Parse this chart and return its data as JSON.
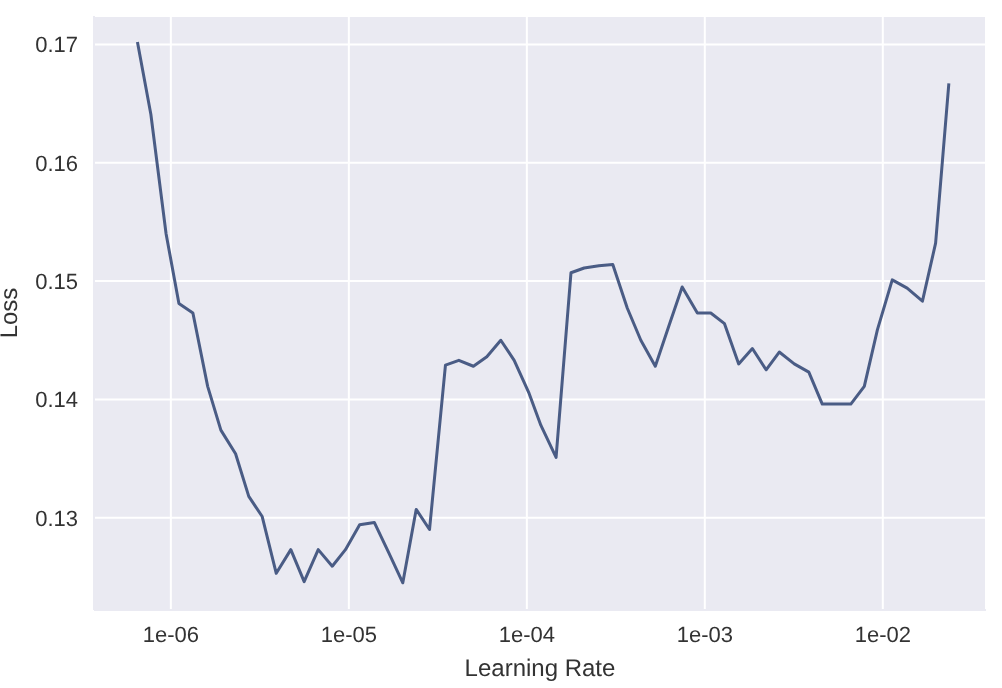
{
  "chart_data": {
    "type": "line",
    "xlabel": "Learning Rate",
    "ylabel": "Loss",
    "log": "x",
    "grid": true,
    "marker": "none",
    "line_style": "solid",
    "xlim": [
      3.7e-07,
      0.038
    ],
    "ylim": [
      0.1222,
      0.1724
    ],
    "xticks": [
      {
        "value": 1e-06,
        "label": "1e-06"
      },
      {
        "value": 1e-05,
        "label": "1e-05"
      },
      {
        "value": 0.0001,
        "label": "1e-04"
      },
      {
        "value": 0.001,
        "label": "1e-03"
      },
      {
        "value": 0.01,
        "label": "1e-02"
      }
    ],
    "yticks": [
      0.13,
      0.14,
      0.15,
      0.16,
      0.17
    ],
    "series": [
      {
        "color": "#4a5c85",
        "x": [
          6.49e-07,
          7.72e-07,
          9.4e-07,
          1.11e-06,
          1.33e-06,
          1.61e-06,
          1.91e-06,
          2.31e-06,
          2.74e-06,
          3.26e-06,
          3.91e-06,
          4.72e-06,
          5.61e-06,
          6.73e-06,
          8.07e-06,
          9.57e-06,
          1.15e-05,
          1.39e-05,
          1.68e-05,
          2.01e-05,
          2.39e-05,
          2.84e-05,
          3.49e-05,
          4.15e-05,
          5.01e-05,
          5.96e-05,
          7.14e-05,
          8.49e-05,
          0.000103,
          0.00012,
          0.000146,
          0.000177,
          0.00021,
          0.000254,
          0.000304,
          0.000367,
          0.000437,
          0.000527,
          0.000628,
          0.000746,
          0.000908,
          0.00108,
          0.00129,
          0.00155,
          0.00185,
          0.00221,
          0.00262,
          0.00318,
          0.00384,
          0.00457,
          0.00552,
          0.00661,
          0.00787,
          0.00933,
          0.0113,
          0.0137,
          0.0167,
          0.0198,
          0.0235
        ],
        "values": [
          0.1702,
          0.1641,
          0.154,
          0.1481,
          0.1473,
          0.1411,
          0.1374,
          0.1354,
          0.1318,
          0.1301,
          0.1253,
          0.1273,
          0.1246,
          0.1273,
          0.1259,
          0.1273,
          0.1294,
          0.1296,
          0.127,
          0.1245,
          0.1307,
          0.129,
          0.1429,
          0.1433,
          0.1428,
          0.1436,
          0.145,
          0.1433,
          0.1405,
          0.1378,
          0.1351,
          0.1507,
          0.1511,
          0.1513,
          0.1514,
          0.1477,
          0.145,
          0.1428,
          0.1462,
          0.1495,
          0.1473,
          0.1473,
          0.1464,
          0.143,
          0.1443,
          0.1425,
          0.144,
          0.143,
          0.1423,
          0.1396,
          0.1396,
          0.1396,
          0.1411,
          0.1459,
          0.1501,
          0.1494,
          0.1483,
          0.1532,
          0.1667
        ]
      }
    ]
  }
}
